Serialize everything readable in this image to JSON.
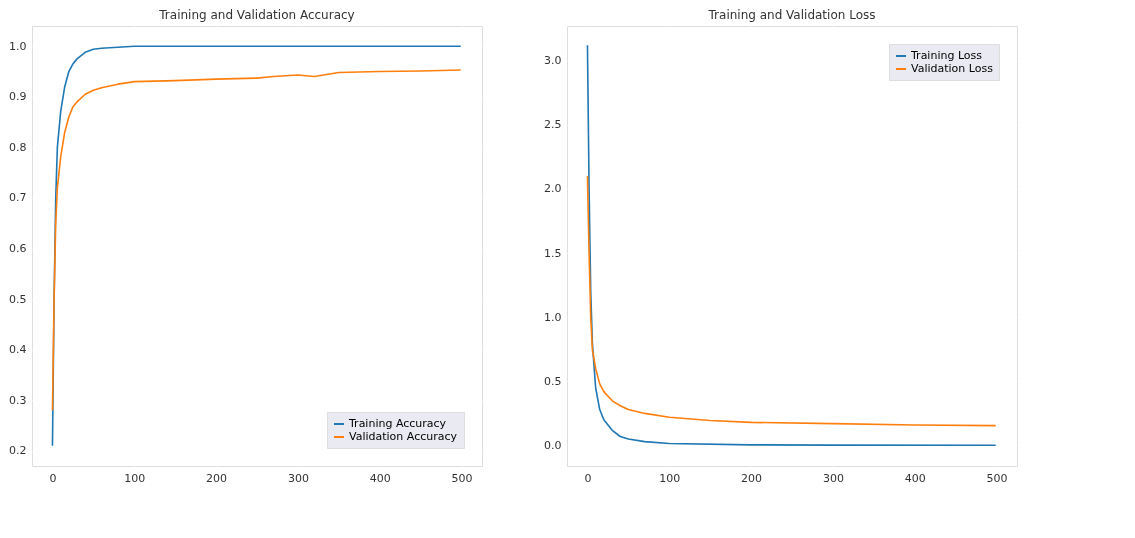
{
  "chart_data": [
    {
      "type": "line",
      "title": "Training and Validation Accuracy",
      "xlim": [
        -25,
        525
      ],
      "ylim": [
        0.17,
        1.04
      ],
      "xticks": [
        0,
        100,
        200,
        300,
        400,
        500
      ],
      "yticks": [
        {
          "value": 0.2,
          "label": "0.2"
        },
        {
          "value": 0.3,
          "label": "0.3"
        },
        {
          "value": 0.4,
          "label": "0.4"
        },
        {
          "value": 0.5,
          "label": "0.5"
        },
        {
          "value": 0.6,
          "label": "0.6"
        },
        {
          "value": 0.7,
          "label": "0.7"
        },
        {
          "value": 0.8,
          "label": "0.8"
        },
        {
          "value": 0.9,
          "label": "0.9"
        },
        {
          "value": 1.0,
          "label": "1.0"
        }
      ],
      "grid": true,
      "legend": "bottom right",
      "line_style": "solid",
      "marker": "none",
      "series": [
        {
          "name": "Training Accuracy",
          "color": "#1f77b4",
          "x": [
            0,
            2,
            4,
            6,
            10,
            15,
            20,
            25,
            30,
            40,
            50,
            60,
            80,
            100,
            200,
            300,
            400,
            499
          ],
          "values": [
            0.21,
            0.5,
            0.7,
            0.8,
            0.87,
            0.92,
            0.95,
            0.965,
            0.975,
            0.988,
            0.994,
            0.996,
            0.998,
            1.0,
            1.0,
            1.0,
            1.0,
            1.0
          ]
        },
        {
          "name": "Validation Accuracy",
          "color": "#ff7f0e",
          "x": [
            0,
            2,
            4,
            6,
            10,
            15,
            20,
            25,
            30,
            40,
            50,
            60,
            80,
            100,
            150,
            200,
            250,
            270,
            300,
            320,
            350,
            400,
            450,
            499
          ],
          "values": [
            0.28,
            0.5,
            0.65,
            0.72,
            0.78,
            0.83,
            0.86,
            0.88,
            0.89,
            0.905,
            0.913,
            0.918,
            0.925,
            0.93,
            0.932,
            0.935,
            0.937,
            0.94,
            0.943,
            0.94,
            0.948,
            0.95,
            0.951,
            0.953
          ]
        }
      ]
    },
    {
      "type": "line",
      "title": "Training and Validation Loss",
      "xlim": [
        -25,
        525
      ],
      "ylim": [
        -0.16,
        3.27
      ],
      "xticks": [
        0,
        100,
        200,
        300,
        400,
        500
      ],
      "yticks": [
        {
          "value": 0,
          "label": "0.0"
        },
        {
          "value": 0.5,
          "label": "0.5"
        },
        {
          "value": 1.0,
          "label": "1.0"
        },
        {
          "value": 1.5,
          "label": "1.5"
        },
        {
          "value": 2.0,
          "label": "2.0"
        },
        {
          "value": 2.5,
          "label": "2.5"
        },
        {
          "value": 3.0,
          "label": "3.0"
        }
      ],
      "grid": true,
      "legend": "top right",
      "line_style": "solid",
      "marker": "none",
      "series": [
        {
          "name": "Training Loss",
          "color": "#1f77b4",
          "x": [
            0,
            2,
            4,
            6,
            10,
            15,
            20,
            30,
            40,
            50,
            70,
            100,
            200,
            300,
            499
          ],
          "values": [
            3.12,
            2.0,
            1.2,
            0.8,
            0.45,
            0.28,
            0.2,
            0.12,
            0.07,
            0.05,
            0.03,
            0.015,
            0.005,
            0.003,
            0.002
          ]
        },
        {
          "name": "Validation Loss",
          "color": "#ff7f0e",
          "x": [
            0,
            2,
            4,
            6,
            10,
            15,
            20,
            30,
            40,
            50,
            70,
            100,
            150,
            200,
            300,
            400,
            499
          ],
          "values": [
            2.1,
            1.5,
            1.0,
            0.75,
            0.6,
            0.48,
            0.42,
            0.35,
            0.31,
            0.28,
            0.25,
            0.22,
            0.195,
            0.18,
            0.17,
            0.16,
            0.155
          ]
        }
      ]
    }
  ]
}
